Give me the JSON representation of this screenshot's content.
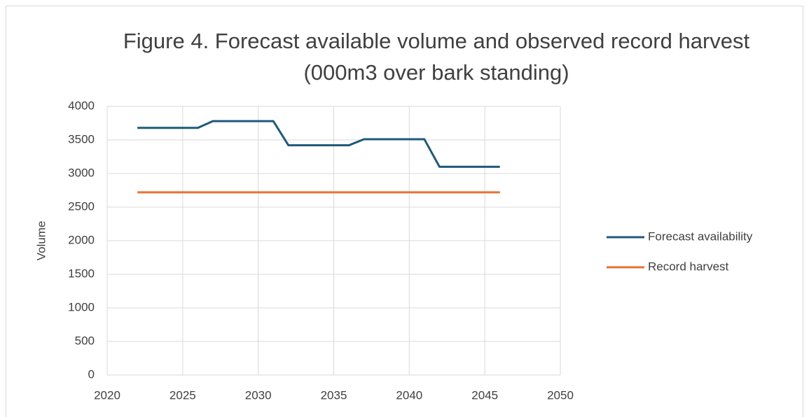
{
  "chart_data": {
    "type": "line",
    "title": "Figure 4. Forecast available volume and observed record harvest (000m3 over bark standing)",
    "y_label": "Volume",
    "x": [
      2022,
      2023,
      2024,
      2025,
      2026,
      2027,
      2028,
      2029,
      2030,
      2031,
      2032,
      2033,
      2034,
      2035,
      2036,
      2037,
      2038,
      2039,
      2040,
      2041,
      2042,
      2043,
      2044,
      2045,
      2046
    ],
    "series": [
      {
        "name": "Forecast availability",
        "color": "#1f5a7a",
        "values": [
          3680,
          3680,
          3680,
          3680,
          3680,
          3780,
          3780,
          3780,
          3780,
          3780,
          3420,
          3420,
          3420,
          3420,
          3420,
          3510,
          3510,
          3510,
          3510,
          3510,
          3100,
          3100,
          3100,
          3100,
          3100
        ]
      },
      {
        "name": "Record harvest",
        "color": "#e97132",
        "values": [
          2720,
          2720,
          2720,
          2720,
          2720,
          2720,
          2720,
          2720,
          2720,
          2720,
          2720,
          2720,
          2720,
          2720,
          2720,
          2720,
          2720,
          2720,
          2720,
          2720,
          2720,
          2720,
          2720,
          2720,
          2720
        ]
      }
    ],
    "xlim": [
      2020,
      2050
    ],
    "xticks": [
      2020,
      2025,
      2030,
      2035,
      2040,
      2045,
      2050
    ],
    "ylim": [
      0,
      4000
    ],
    "yticks": [
      0,
      500,
      1000,
      1500,
      2000,
      2500,
      3000,
      3500,
      4000
    ],
    "grid": true,
    "legend": "right"
  }
}
